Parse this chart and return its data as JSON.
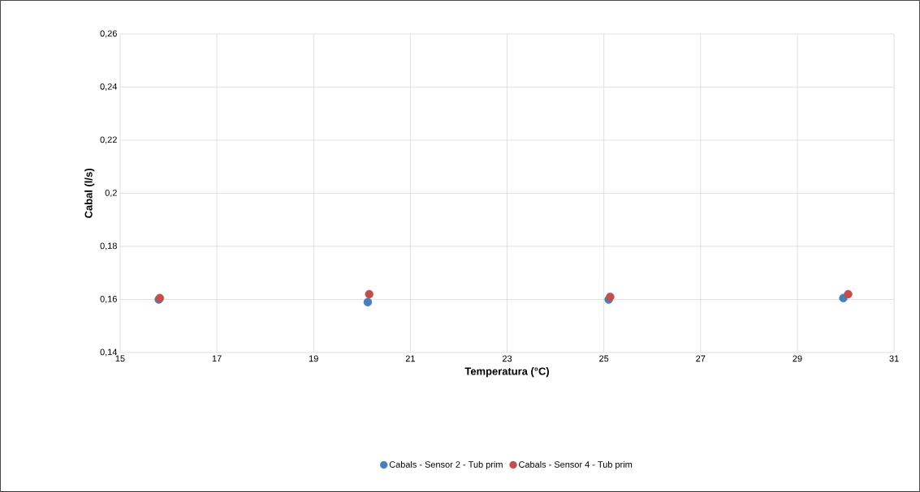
{
  "chart_data": {
    "type": "scatter",
    "xlabel": "Temperatura (°C)",
    "ylabel": "Cabal (l/s)",
    "series": [
      {
        "name": "Cabals - Sensor 2 - Tub prim",
        "color": "#4a7ebb",
        "x": [
          15.8,
          20.12,
          25.1,
          29.95
        ],
        "values": [
          0.16,
          0.159,
          0.16,
          0.1605
        ]
      },
      {
        "name": "Cabals - Sensor 4 - Tub prim",
        "color": "#c0504d",
        "x": [
          15.82,
          20.15,
          25.13,
          30.05
        ],
        "values": [
          0.1605,
          0.162,
          0.161,
          0.162
        ]
      }
    ],
    "xlim": [
      15,
      31
    ],
    "xticks": [
      15,
      17,
      19,
      21,
      23,
      25,
      27,
      29,
      31
    ],
    "ylim": [
      0.14,
      0.26
    ],
    "yticks": [
      {
        "value": 0.14,
        "label": "0,14"
      },
      {
        "value": 0.16,
        "label": "0,16"
      },
      {
        "value": 0.18,
        "label": "0,18"
      },
      {
        "value": 0.2,
        "label": "0,2"
      },
      {
        "value": 0.22,
        "label": "0,22"
      },
      {
        "value": 0.24,
        "label": "0,24"
      },
      {
        "value": 0.26,
        "label": "0,26"
      }
    ],
    "grid": true,
    "legend": "bottom",
    "marker": "circle"
  }
}
